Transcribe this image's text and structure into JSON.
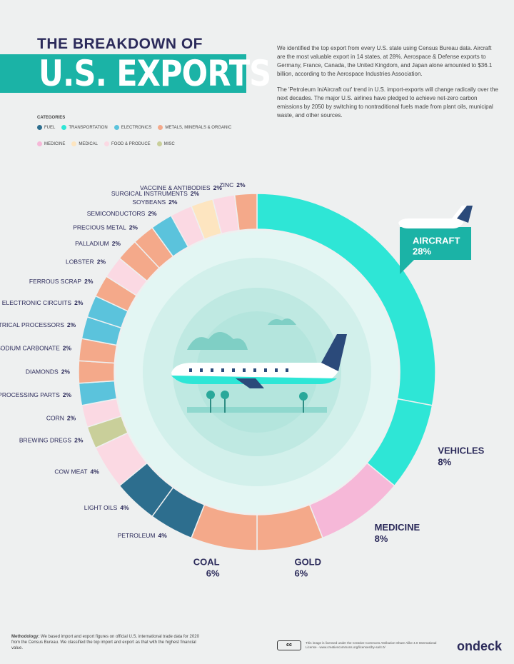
{
  "header": {
    "kicker": "THE BREAKDOWN OF",
    "title": "U.S. EXPORTS"
  },
  "intro": {
    "paragraphs": [
      "We identified the top export from every U.S. state using Census Bureau data. Aircraft are the most valuable export in 14 states, at 28%. Aerospace & Defense exports to Germany, France, Canada, the United Kingdom, and Japan alone amounted to $36.1 billion, according to the Aerospace Industries Association.",
      "The 'Petroleum In/Aircraft out' trend in U.S. import-exports will change radically over the next decades. The major U.S. airlines have pledged to achieve net-zero carbon emissions by 2050 by switching to nontraditional fuels made from plant oils, municipal waste, and other sources."
    ]
  },
  "legend": {
    "title": "CATEGORIES",
    "items": [
      {
        "name": "FUEL",
        "color": "#2d6e8e"
      },
      {
        "name": "TRANSPORTATION",
        "color": "#2ee6d6"
      },
      {
        "name": "ELECTRONICS",
        "color": "#5bc3dc"
      },
      {
        "name": "METALS, MINERALS & ORGANIC",
        "color": "#f4a98a"
      },
      {
        "name": "MEDICINE",
        "color": "#f6b8d8"
      },
      {
        "name": "MEDICAL",
        "color": "#fde5c0"
      },
      {
        "name": "FOOD & PRODUCE",
        "color": "#fbd9e3"
      },
      {
        "name": "MISC",
        "color": "#c9cf9a"
      }
    ]
  },
  "chart_data": {
    "type": "donut",
    "categories": [
      "AIRCRAFT",
      "VEHICLES",
      "MEDICINE",
      "GOLD",
      "COAL",
      "PETROLEUM",
      "LIGHT OILS",
      "COW MEAT",
      "BREWING DREGS",
      "CORN",
      "DATA PROCESSING PARTS",
      "DIAMONDS",
      "DISODIUM CARBONATE",
      "ELECTRICAL PROCESSORS",
      "ELECTRONIC CIRCUITS",
      "FERROUS SCRAP",
      "LOBSTER",
      "PALLADIUM",
      "PRECIOUS METAL",
      "SEMICONDUCTORS",
      "SOYBEANS",
      "SURGICAL INSTRUMENTS",
      "VACCINE & ANTIBODIES",
      "ZINC"
    ],
    "values": [
      28,
      8,
      8,
      6,
      6,
      4,
      4,
      4,
      2,
      2,
      2,
      2,
      2,
      2,
      2,
      2,
      2,
      2,
      2,
      2,
      2,
      2,
      2,
      2
    ],
    "value_labels": [
      "28%",
      "8%",
      "8%",
      "6%",
      "6%",
      "4%",
      "4%",
      "4%",
      "2%",
      "2%",
      "2%",
      "2%",
      "2%",
      "2%",
      "2%",
      "2%",
      "2%",
      "2%",
      "2%",
      "2%",
      "2%",
      "2%",
      "2%",
      "2%"
    ],
    "colors": [
      "#2ee6d6",
      "#2ee6d6",
      "#f6b8d8",
      "#f4a98a",
      "#f4a98a",
      "#2d6e8e",
      "#2d6e8e",
      "#fbd9e3",
      "#c9cf9a",
      "#fbd9e3",
      "#5bc3dc",
      "#f4a98a",
      "#f4a98a",
      "#5bc3dc",
      "#5bc3dc",
      "#f4a98a",
      "#fbd9e3",
      "#f4a98a",
      "#f4a98a",
      "#5bc3dc",
      "#fbd9e3",
      "#fde5c0",
      "#fbd9e3",
      "#f4a98a"
    ]
  },
  "footer": {
    "methodology_label": "Methodology:",
    "methodology": "We based import and export figures on official U.S. international trade data for 2020 from the Census Bureau. We classified the top import and export as that with the highest financial value.",
    "license": "This image is licensed under the Creative Commons Attribution-Share Alike 4.0 International License - www.creativecommons.org/licenses/by-sa/4.0/",
    "brand": "ondeck"
  }
}
